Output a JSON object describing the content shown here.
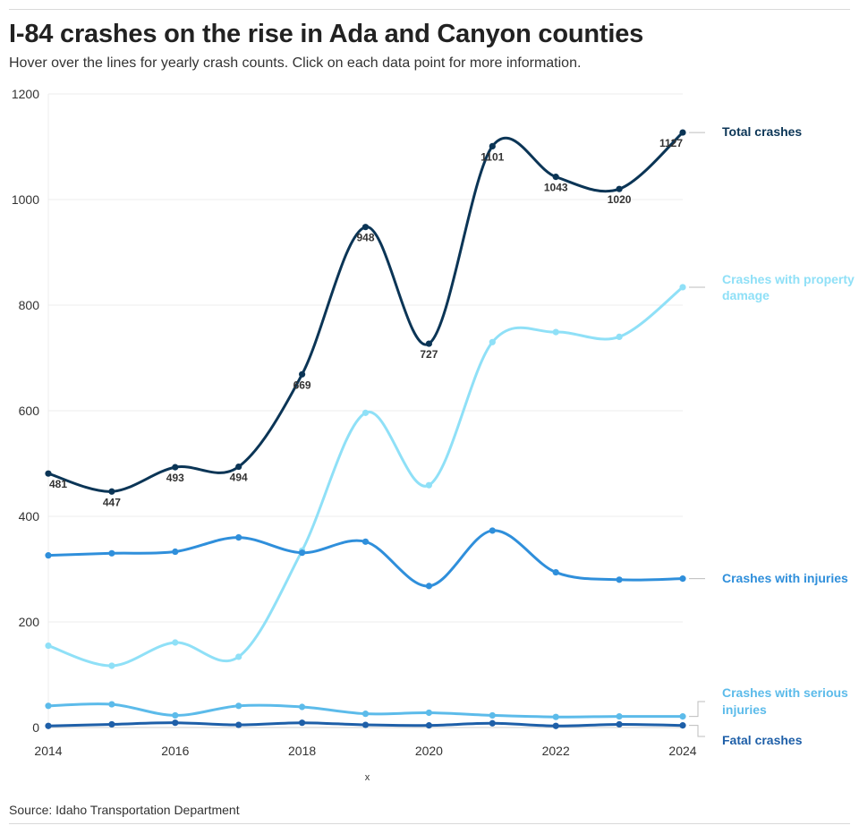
{
  "header": {
    "title": "I-84 crashes on the rise in Ada and Canyon counties",
    "subtitle": "Hover over the lines for yearly crash counts. Click on each data point for more information."
  },
  "footer": {
    "source": "Source: Idaho Transportation Department"
  },
  "chart_data": {
    "type": "line",
    "title": "I-84 crashes on the rise in Ada and Canyon counties",
    "xlabel": "x",
    "ylabel": "",
    "x": [
      2014,
      2015,
      2016,
      2017,
      2018,
      2019,
      2020,
      2021,
      2022,
      2023,
      2024
    ],
    "xticks": [
      "2014",
      "2016",
      "2018",
      "2020",
      "2022",
      "2024"
    ],
    "yticks": [
      "0",
      "200",
      "400",
      "600",
      "800",
      "1000",
      "1200"
    ],
    "ylim": [
      0,
      1200
    ],
    "grid": true,
    "series": [
      {
        "name": "Crashes with property damage",
        "label_lines": [
          "Crashes with property",
          "damage"
        ],
        "color": "#8fe0f7",
        "values": [
          155,
          117,
          161,
          134,
          335,
          596,
          459,
          730,
          749,
          740,
          834
        ],
        "labels": []
      },
      {
        "name": "Crashes with injuries",
        "label_lines": [
          "Crashes with injuries"
        ],
        "color": "#2f8fdb",
        "values": [
          326,
          330,
          333,
          360,
          331,
          352,
          268,
          373,
          294,
          280,
          282
        ],
        "labels": []
      },
      {
        "name": "Crashes with serious injuries",
        "label_lines": [
          "Crashes with serious",
          "injuries"
        ],
        "color": "#5cbbea",
        "values": [
          41,
          44,
          23,
          41,
          39,
          26,
          28,
          23,
          20,
          21,
          21
        ],
        "labels": []
      },
      {
        "name": "Fatal crashes",
        "label_lines": [
          "Fatal crashes"
        ],
        "color": "#1e5fa8",
        "values": [
          3,
          6,
          9,
          5,
          9,
          5,
          4,
          8,
          3,
          6,
          4
        ],
        "labels": []
      },
      {
        "name": "Total crashes",
        "label_lines": [
          "Total crashes"
        ],
        "color": "#0b3556",
        "values": [
          481,
          447,
          493,
          494,
          669,
          948,
          727,
          1101,
          1043,
          1020,
          1127
        ],
        "labels": [
          "481",
          "447",
          "493",
          "494",
          "669",
          "948",
          "727",
          "1101",
          "1043",
          "1020",
          "1127"
        ]
      }
    ]
  }
}
